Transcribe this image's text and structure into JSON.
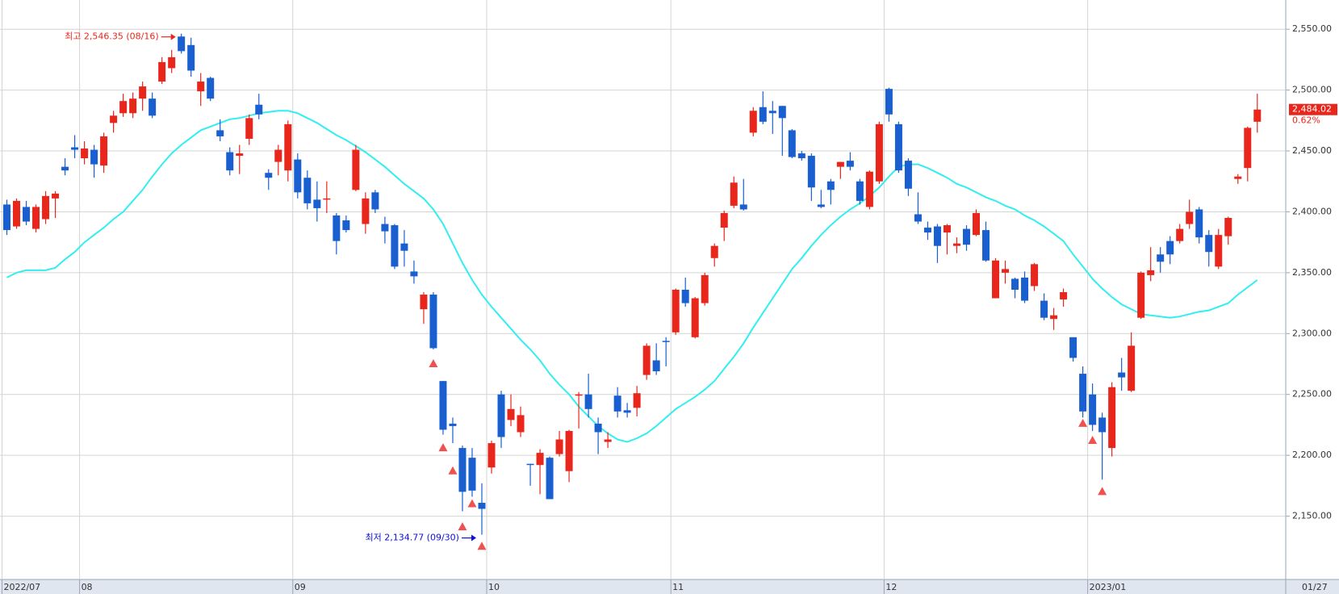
{
  "chart_data": {
    "type": "candlestick",
    "up_color": "#e8261c",
    "down_color": "#1a5fd0",
    "grid": true,
    "ylim": [
      2098,
      2574
    ],
    "yticks": [
      {
        "value": 2150,
        "label": "2,150.00"
      },
      {
        "value": 2200,
        "label": "2,200.00"
      },
      {
        "value": 2250,
        "label": "2,250.00"
      },
      {
        "value": 2300,
        "label": "2,300.00"
      },
      {
        "value": 2350,
        "label": "2,350.00"
      },
      {
        "value": 2400,
        "label": "2,400.00"
      },
      {
        "value": 2450,
        "label": "2,450.00"
      },
      {
        "value": 2500,
        "label": "2,500.00"
      },
      {
        "value": 2550,
        "label": "2,550.00"
      }
    ],
    "categories": [
      "2022/07",
      null,
      null,
      null,
      null,
      null,
      null,
      null,
      "08",
      null,
      null,
      null,
      null,
      null,
      null,
      null,
      null,
      null,
      null,
      null,
      null,
      null,
      null,
      null,
      null,
      null,
      null,
      null,
      null,
      null,
      "09",
      null,
      null,
      null,
      null,
      null,
      null,
      null,
      null,
      null,
      null,
      null,
      null,
      null,
      null,
      null,
      null,
      null,
      null,
      null,
      "10",
      null,
      null,
      null,
      null,
      null,
      null,
      null,
      null,
      null,
      null,
      null,
      null,
      null,
      null,
      null,
      null,
      null,
      null,
      "11",
      null,
      null,
      null,
      null,
      null,
      null,
      null,
      null,
      null,
      null,
      null,
      null,
      null,
      null,
      null,
      null,
      null,
      null,
      null,
      null,
      null,
      "12",
      null,
      null,
      null,
      null,
      null,
      null,
      null,
      null,
      null,
      null,
      null,
      null,
      null,
      null,
      null,
      null,
      null,
      null,
      null,
      null,
      "2023/01",
      null,
      null,
      null,
      null,
      null,
      null,
      null,
      null,
      null,
      null,
      null,
      null,
      null,
      null,
      null,
      null,
      null
    ],
    "open": [
      2406,
      2388,
      2404,
      2386,
      2394,
      2411,
      2437,
      2453,
      2444,
      2451,
      2438,
      2473,
      2481,
      2481,
      2493,
      2493,
      2507,
      2518,
      2544,
      2537,
      2499,
      2510,
      2467,
      2449,
      2446,
      2460,
      2488,
      2432,
      2441,
      2434,
      2443,
      2428,
      2410,
      2410,
      2397,
      2393,
      2418,
      2390,
      2416,
      2390,
      2389,
      2374,
      2351,
      2320,
      2332,
      2261,
      2226,
      2206,
      2198,
      2161,
      2190,
      2250,
      2229,
      2219,
      2193,
      2192,
      2198,
      2201,
      2187,
      2249,
      2250,
      2226,
      2211,
      2249,
      2237,
      2239,
      2266,
      2278,
      2294,
      2301,
      2336,
      2297,
      2325,
      2362,
      2387,
      2405,
      2406,
      2465,
      2486,
      2483,
      2487,
      2467,
      2448,
      2446,
      2406,
      2425,
      2437,
      2442,
      2425,
      2404,
      2425,
      2501,
      2472,
      2442,
      2398,
      2387,
      2388,
      2383,
      2372,
      2386,
      2381,
      2385,
      2329,
      2350,
      2345,
      2346,
      2339,
      2327,
      2312,
      2328,
      2297,
      2267,
      2250,
      2231,
      2206,
      2268,
      2253,
      2313,
      2348,
      2365,
      2376,
      2376,
      2390,
      2402,
      2381,
      2355,
      2380,
      2427,
      2436,
      2474
    ],
    "high": [
      2410,
      2411,
      2409,
      2406,
      2417,
      2417,
      2444,
      2463,
      2458,
      2455,
      2465,
      2483,
      2497,
      2498,
      2507,
      2498,
      2527,
      2533,
      2546.35,
      2543,
      2514,
      2511,
      2476,
      2453,
      2455,
      2480,
      2497,
      2435,
      2455,
      2475,
      2448,
      2434,
      2425,
      2425,
      2399,
      2397,
      2455,
      2416,
      2418,
      2396,
      2390,
      2385,
      2360,
      2334,
      2334,
      2261,
      2231,
      2208,
      2206,
      2177,
      2212,
      2253,
      2250,
      2240,
      2193,
      2205,
      2199,
      2220,
      2221,
      2252,
      2267,
      2231,
      2219,
      2256,
      2243,
      2257,
      2292,
      2292,
      2297,
      2337,
      2346,
      2330,
      2350,
      2374,
      2401,
      2429,
      2427,
      2486,
      2499,
      2491,
      2487,
      2468,
      2450,
      2448,
      2418,
      2427,
      2441,
      2449,
      2427,
      2434,
      2474,
      2502,
      2474,
      2444,
      2416,
      2392,
      2390,
      2390,
      2379,
      2389,
      2402,
      2392,
      2362,
      2360,
      2346,
      2351,
      2358,
      2333,
      2321,
      2337,
      2297,
      2273,
      2259,
      2235,
      2260,
      2280,
      2301,
      2351,
      2371,
      2371,
      2380,
      2390,
      2410,
      2404,
      2385,
      2386,
      2396,
      2431,
      2470,
      2497
    ],
    "low": [
      2381,
      2386,
      2389,
      2383,
      2390,
      2395,
      2430,
      2444,
      2439,
      2428,
      2432,
      2465,
      2478,
      2477,
      2483,
      2477,
      2505,
      2514,
      2530,
      2511,
      2487,
      2491,
      2458,
      2430,
      2431,
      2455,
      2476,
      2418,
      2430,
      2425,
      2411,
      2402,
      2392,
      2399,
      2365,
      2383,
      2417,
      2382,
      2399,
      2374,
      2353,
      2355,
      2341,
      2308,
      2287,
      2217,
      2210,
      2154,
      2166,
      2134.77,
      2185,
      2206,
      2224,
      2215,
      2175,
      2168,
      2164,
      2199,
      2178,
      2222,
      2231,
      2201,
      2206,
      2231,
      2231,
      2232,
      2262,
      2266,
      2273,
      2299,
      2322,
      2296,
      2323,
      2355,
      2376,
      2403,
      2401,
      2462,
      2472,
      2464,
      2446,
      2444,
      2442,
      2409,
      2403,
      2406,
      2427,
      2434,
      2406,
      2402,
      2423,
      2474,
      2432,
      2413,
      2390,
      2377,
      2358,
      2365,
      2366,
      2368,
      2380,
      2359,
      2329,
      2341,
      2329,
      2325,
      2335,
      2311,
      2303,
      2322,
      2277,
      2231,
      2220,
      2180,
      2199,
      2253,
      2252,
      2312,
      2343,
      2350,
      2357,
      2374,
      2386,
      2374,
      2355,
      2353,
      2373,
      2423,
      2425,
      2465
    ],
    "close": [
      2385,
      2409,
      2392,
      2404,
      2413,
      2415,
      2434,
      2451,
      2452,
      2439,
      2462,
      2479,
      2491,
      2493,
      2503,
      2479,
      2523,
      2527,
      2532,
      2516,
      2507,
      2493,
      2462,
      2434,
      2448,
      2477,
      2480,
      2428,
      2451,
      2472,
      2416,
      2407,
      2403,
      2411,
      2376,
      2385,
      2451,
      2411,
      2402,
      2384,
      2355,
      2368,
      2347,
      2332,
      2288,
      2221,
      2224,
      2170,
      2171,
      2156,
      2210,
      2215,
      2238,
      2233,
      2192,
      2202,
      2164,
      2213,
      2220,
      2250,
      2238,
      2219,
      2213,
      2236,
      2235,
      2251,
      2290,
      2269,
      2293,
      2336,
      2325,
      2329,
      2348,
      2372,
      2399,
      2424,
      2402,
      2483,
      2474,
      2481,
      2477,
      2445,
      2444,
      2420,
      2404,
      2418,
      2441,
      2437,
      2409,
      2433,
      2472,
      2480,
      2434,
      2419,
      2392,
      2383,
      2372,
      2389,
      2374,
      2373,
      2399,
      2360,
      2360,
      2353,
      2336,
      2327,
      2357,
      2313,
      2315,
      2334,
      2280,
      2236,
      2225,
      2219,
      2256,
      2264,
      2290,
      2350,
      2352,
      2359,
      2365,
      2386,
      2400,
      2379,
      2367,
      2381,
      2395,
      2429,
      2469,
      2484.02
    ],
    "moving_average": {
      "color": "#33eef0",
      "values": [
        2346,
        2350,
        2352,
        2352,
        2352,
        2354,
        2361,
        2367,
        2375,
        2381,
        2387,
        2394,
        2400,
        2409,
        2418,
        2429,
        2439,
        2448,
        2455,
        2461,
        2467,
        2470,
        2473,
        2476,
        2477,
        2479,
        2481,
        2482,
        2483,
        2483,
        2481,
        2477,
        2473,
        2468,
        2463,
        2459,
        2454,
        2449,
        2443,
        2437,
        2430,
        2423,
        2417,
        2411,
        2402,
        2390,
        2374,
        2358,
        2344,
        2332,
        2322,
        2313,
        2304,
        2295,
        2287,
        2278,
        2267,
        2258,
        2250,
        2240,
        2232,
        2224,
        2218,
        2213,
        2211,
        2214,
        2218,
        2224,
        2231,
        2238,
        2243,
        2248,
        2254,
        2261,
        2271,
        2281,
        2292,
        2305,
        2317,
        2329,
        2341,
        2353,
        2362,
        2372,
        2381,
        2389,
        2396,
        2402,
        2407,
        2413,
        2420,
        2429,
        2437,
        2439,
        2439,
        2436,
        2432,
        2428,
        2423,
        2420,
        2416,
        2412,
        2409,
        2405,
        2402,
        2397,
        2393,
        2388,
        2382,
        2376,
        2365,
        2355,
        2345,
        2337,
        2330,
        2324,
        2320,
        2316,
        2315,
        2314,
        2313,
        2314,
        2316,
        2318,
        2319,
        2322,
        2325,
        2332,
        2338,
        2344
      ]
    },
    "markers": {
      "color": "#f05050",
      "indices": [
        44,
        45,
        46,
        47,
        48,
        49,
        111,
        112,
        113
      ],
      "values": [
        2275,
        2206,
        2187,
        2141,
        2160,
        2125,
        2226,
        2212,
        2170
      ]
    },
    "annotations": [
      {
        "text": "최고 2,546.35 (08/16)",
        "index": 18,
        "value": 2546.35,
        "color": "#e8261c"
      },
      {
        "text": "최저 2,134.77 (09/30)",
        "index": 49,
        "value": 2134.77,
        "color": "#1010d0"
      }
    ],
    "last_price_label": "2,484.02",
    "change_label": "0.62%",
    "last_date_label": "01/27"
  }
}
